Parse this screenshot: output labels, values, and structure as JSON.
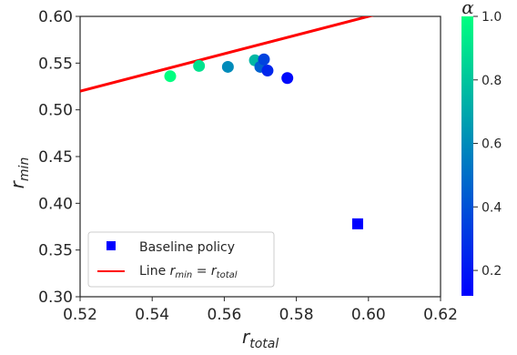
{
  "chart_data": {
    "type": "scatter",
    "xlabel": "r",
    "xlabel_sub": "total",
    "ylabel": "r",
    "ylabel_sub": "min",
    "xlim": [
      0.52,
      0.62
    ],
    "ylim": [
      0.3,
      0.6
    ],
    "xticks": [
      "0.52",
      "0.54",
      "0.56",
      "0.58",
      "0.60",
      "0.62"
    ],
    "yticks": [
      "0.30",
      "0.35",
      "0.40",
      "0.45",
      "0.50",
      "0.55",
      "0.60"
    ],
    "grid": false,
    "legend_placement": "lower-left",
    "series": [
      {
        "kind": "colored-points",
        "points": [
          {
            "x": 0.545,
            "y": 0.536,
            "alpha": 1.0
          },
          {
            "x": 0.553,
            "y": 0.547,
            "alpha": 0.9
          },
          {
            "x": 0.561,
            "y": 0.546,
            "alpha": 0.6
          },
          {
            "x": 0.5685,
            "y": 0.553,
            "alpha": 0.75
          },
          {
            "x": 0.57,
            "y": 0.546,
            "alpha": 0.45
          },
          {
            "x": 0.571,
            "y": 0.554,
            "alpha": 0.35
          },
          {
            "x": 0.572,
            "y": 0.542,
            "alpha": 0.25
          },
          {
            "x": 0.5775,
            "y": 0.534,
            "alpha": 0.15
          }
        ]
      },
      {
        "kind": "baseline",
        "name": "Baseline policy",
        "color": "#0000ff",
        "marker": "square",
        "points": [
          {
            "x": 0.597,
            "y": 0.378
          }
        ]
      },
      {
        "kind": "line",
        "name_prefix": "Line ",
        "name_r1": "r",
        "name_sub1": "min",
        "name_eq": " = ",
        "name_r2": "r",
        "name_sub2": "total",
        "color": "#ff0000",
        "x": [
          0.52,
          0.62
        ],
        "y": [
          0.52,
          0.62
        ]
      }
    ],
    "colorbar": {
      "label": "α",
      "range": [
        0.12,
        1.0
      ],
      "ticks": [
        "0.2",
        "0.4",
        "0.6",
        "0.8",
        "1.0"
      ],
      "tick_values": [
        0.2,
        0.4,
        0.6,
        0.8,
        1.0
      ],
      "colormap_low": "#0000ff",
      "colormap_high": "#00ff80"
    }
  }
}
